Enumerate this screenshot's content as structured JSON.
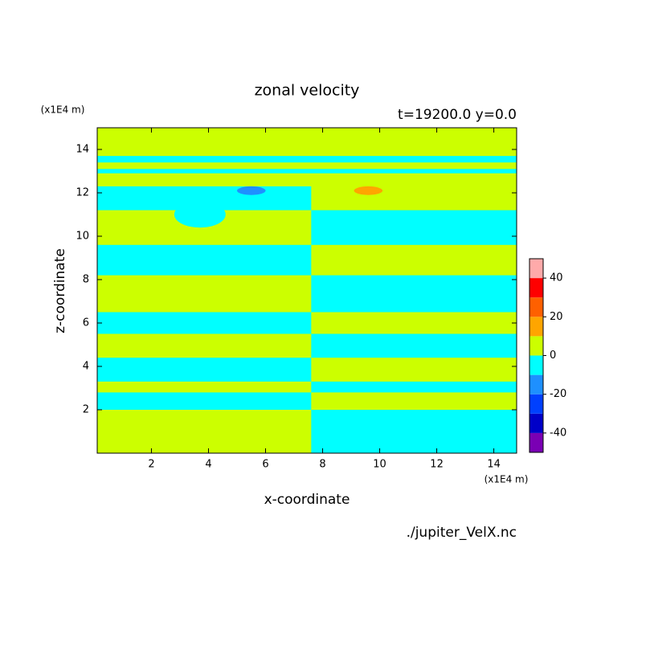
{
  "chart_data": {
    "type": "contour",
    "title": "zonal velocity",
    "subtitle": "t=19200.0 y=0.0",
    "x_label": "x-coordinate",
    "y_label": "z-coordinate",
    "x_unit": "(x1E4 m)",
    "y_unit": "(x1E4 m)",
    "source": "./jupiter_VelX.nc",
    "xlim": [
      0.1,
      14.8
    ],
    "ylim": [
      0,
      15
    ],
    "xticks": [
      2,
      4,
      6,
      8,
      10,
      12,
      14
    ],
    "yticks": [
      2,
      4,
      6,
      8,
      10,
      12,
      14
    ],
    "levels": [
      -50,
      -40,
      -30,
      -20,
      -10,
      0,
      10,
      20,
      30,
      40,
      50
    ],
    "colors": [
      "#7a00b4",
      "#0000c8",
      "#0040ff",
      "#1e90ff",
      "#00ffff",
      "#ccff00",
      "#ffa500",
      "#ff6000",
      "#ff0000",
      "#ffaaaa"
    ],
    "colorbar_ticks": [
      -40,
      -20,
      0,
      20,
      40
    ],
    "regions": [
      {
        "shape": "rect",
        "x": [
          0.1,
          14.8
        ],
        "z": [
          0,
          15
        ],
        "level": 5
      },
      {
        "shape": "rect",
        "x": [
          0.1,
          7.6
        ],
        "z": [
          2.0,
          2.8
        ],
        "level": -5
      },
      {
        "shape": "rect",
        "x": [
          0.1,
          7.6
        ],
        "z": [
          3.3,
          4.4
        ],
        "level": -5
      },
      {
        "shape": "rect",
        "x": [
          0.1,
          7.6
        ],
        "z": [
          5.5,
          6.5
        ],
        "level": -5
      },
      {
        "shape": "rect",
        "x": [
          0.1,
          7.6
        ],
        "z": [
          8.2,
          9.6
        ],
        "level": -5
      },
      {
        "shape": "rect",
        "x": [
          0.1,
          7.6
        ],
        "z": [
          11.2,
          12.3
        ],
        "level": -5
      },
      {
        "shape": "ellipse",
        "x": [
          2.8,
          4.6
        ],
        "z": [
          10.4,
          11.6
        ],
        "level": -5
      },
      {
        "shape": "rect",
        "x": [
          7.6,
          14.8
        ],
        "z": [
          0,
          2.0
        ],
        "level": -5
      },
      {
        "shape": "rect",
        "x": [
          7.6,
          14.8
        ],
        "z": [
          2.8,
          3.3
        ],
        "level": -5
      },
      {
        "shape": "rect",
        "x": [
          7.6,
          14.8
        ],
        "z": [
          4.4,
          5.5
        ],
        "level": -5
      },
      {
        "shape": "rect",
        "x": [
          7.6,
          14.8
        ],
        "z": [
          6.5,
          8.2
        ],
        "level": -5
      },
      {
        "shape": "rect",
        "x": [
          7.6,
          14.8
        ],
        "z": [
          9.6,
          11.2
        ],
        "level": -5
      },
      {
        "shape": "rect",
        "x": [
          0.1,
          14.8
        ],
        "z": [
          12.9,
          13.1
        ],
        "level": -5
      },
      {
        "shape": "rect",
        "x": [
          0.1,
          14.8
        ],
        "z": [
          13.4,
          13.7
        ],
        "level": -5
      },
      {
        "shape": "ellipse",
        "x": [
          5.0,
          6.0
        ],
        "z": [
          11.9,
          12.3
        ],
        "level": -15
      },
      {
        "shape": "ellipse",
        "x": [
          9.1,
          10.1
        ],
        "z": [
          11.9,
          12.3
        ],
        "level": 15
      }
    ]
  }
}
